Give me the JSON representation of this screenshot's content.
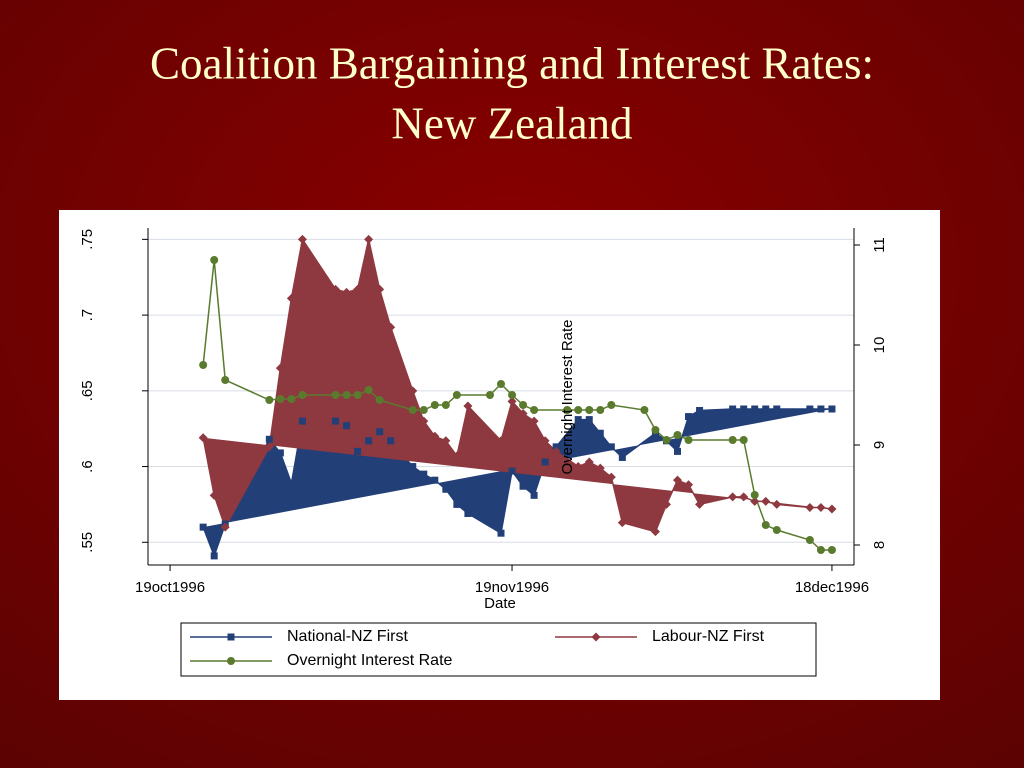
{
  "chart_data": {
    "type": "area-line",
    "title": [
      "Coalition Bargaining and Interest Rates:",
      "New Zealand"
    ],
    "x_label": "Date",
    "y2_label": "Overnight Interest Rate",
    "xlim": [
      "1996-10-17",
      "1996-12-20"
    ],
    "xticks": [
      {
        "value": "1996-10-19",
        "label": "19oct1996"
      },
      {
        "value": "1996-11-19",
        "label": "19nov1996"
      },
      {
        "value": "1996-12-18",
        "label": "18dec1996"
      }
    ],
    "ylim": [
      0.535,
      0.7575
    ],
    "yticks": [
      {
        "value": 0.55,
        "label": ".55"
      },
      {
        "value": 0.6,
        "label": ".6"
      },
      {
        "value": 0.65,
        "label": ".65"
      },
      {
        "value": 0.7,
        "label": ".7"
      },
      {
        "value": 0.75,
        "label": ".75"
      }
    ],
    "y2lim": [
      7.8,
      11.17
    ],
    "y2ticks": [
      8,
      9,
      10,
      11
    ],
    "grid": true,
    "series": [
      {
        "name": "National-NZ First",
        "color": "#233f78",
        "marker": "square",
        "area": true,
        "x": [
          "1996-10-22",
          "1996-10-23",
          "1996-10-24",
          "1996-10-28",
          "1996-10-29",
          "1996-10-30",
          "1996-10-31",
          "1996-11-03",
          "1996-11-04",
          "1996-11-05",
          "1996-11-06",
          "1996-11-07",
          "1996-11-08",
          "1996-11-10",
          "1996-11-11",
          "1996-11-12",
          "1996-11-13",
          "1996-11-14",
          "1996-11-15",
          "1996-11-18",
          "1996-11-19",
          "1996-11-20",
          "1996-11-21",
          "1996-11-22",
          "1996-11-23",
          "1996-11-25",
          "1996-11-26",
          "1996-11-27",
          "1996-11-28",
          "1996-11-29",
          "1996-12-02",
          "1996-12-03",
          "1996-12-04",
          "1996-12-05",
          "1996-12-06",
          "1996-12-09",
          "1996-12-10",
          "1996-12-11",
          "1996-12-12",
          "1996-12-13",
          "1996-12-16",
          "1996-12-17",
          "1996-12-18"
        ],
        "values": [
          0.56,
          0.541,
          0.562,
          0.618,
          0.609,
          0.589,
          0.63,
          0.63,
          0.627,
          0.61,
          0.617,
          0.623,
          0.617,
          0.6,
          0.595,
          0.591,
          0.585,
          0.575,
          0.569,
          0.556,
          0.597,
          0.587,
          0.581,
          0.603,
          0.613,
          0.631,
          0.631,
          0.622,
          0.613,
          0.606,
          0.622,
          0.617,
          0.61,
          0.633,
          0.637,
          0.638,
          0.638,
          0.638,
          0.638,
          0.638,
          0.638,
          0.638,
          0.638
        ]
      },
      {
        "name": "Labour-NZ First",
        "color": "#8e3840",
        "marker": "diamond",
        "area": true,
        "x": [
          "1996-10-22",
          "1996-10-23",
          "1996-10-24",
          "1996-10-28",
          "1996-10-29",
          "1996-10-30",
          "1996-10-31",
          "1996-11-03",
          "1996-11-04",
          "1996-11-05",
          "1996-11-06",
          "1996-11-07",
          "1996-11-08",
          "1996-11-10",
          "1996-11-11",
          "1996-11-12",
          "1996-11-13",
          "1996-11-14",
          "1996-11-15",
          "1996-11-18",
          "1996-11-19",
          "1996-11-20",
          "1996-11-21",
          "1996-11-22",
          "1996-11-23",
          "1996-11-25",
          "1996-11-26",
          "1996-11-27",
          "1996-11-28",
          "1996-11-29",
          "1996-12-02",
          "1996-12-03",
          "1996-12-04",
          "1996-12-05",
          "1996-12-06",
          "1996-12-09",
          "1996-12-10",
          "1996-12-11",
          "1996-12-12",
          "1996-12-13",
          "1996-12-16",
          "1996-12-17",
          "1996-12-18"
        ],
        "values": [
          0.619,
          0.581,
          0.56,
          0.613,
          0.665,
          0.711,
          0.75,
          0.717,
          0.715,
          0.717,
          0.75,
          0.717,
          0.692,
          0.65,
          0.63,
          0.62,
          0.617,
          0.607,
          0.64,
          0.617,
          0.643,
          0.635,
          0.63,
          0.617,
          0.61,
          0.6,
          0.603,
          0.599,
          0.593,
          0.563,
          0.557,
          0.575,
          0.591,
          0.588,
          0.575,
          0.58,
          0.58,
          0.577,
          0.577,
          0.575,
          0.573,
          0.573,
          0.572
        ]
      },
      {
        "name": "Overnight Interest Rate",
        "color": "#5a7a2e",
        "marker": "circle",
        "axis": "y2",
        "x": [
          "1996-10-22",
          "1996-10-23",
          "1996-10-24",
          "1996-10-28",
          "1996-10-29",
          "1996-10-30",
          "1996-10-31",
          "1996-11-03",
          "1996-11-04",
          "1996-11-05",
          "1996-11-06",
          "1996-11-07",
          "1996-11-10",
          "1996-11-11",
          "1996-11-12",
          "1996-11-13",
          "1996-11-14",
          "1996-11-17",
          "1996-11-18",
          "1996-11-19",
          "1996-11-20",
          "1996-11-21",
          "1996-11-24",
          "1996-11-25",
          "1996-11-26",
          "1996-11-27",
          "1996-11-28",
          "1996-12-01",
          "1996-12-02",
          "1996-12-03",
          "1996-12-04",
          "1996-12-05",
          "1996-12-09",
          "1996-12-10",
          "1996-12-11",
          "1996-12-12",
          "1996-12-13",
          "1996-12-16",
          "1996-12-17",
          "1996-12-18"
        ],
        "values": [
          9.8,
          10.85,
          9.65,
          9.45,
          9.46,
          9.46,
          9.5,
          9.5,
          9.5,
          9.5,
          9.55,
          9.45,
          9.35,
          9.35,
          9.4,
          9.4,
          9.5,
          9.5,
          9.61,
          9.5,
          9.4,
          9.35,
          9.35,
          9.35,
          9.35,
          9.35,
          9.4,
          9.35,
          9.15,
          9.05,
          9.1,
          9.05,
          9.05,
          9.05,
          8.5,
          8.2,
          8.15,
          8.05,
          7.95,
          7.95
        ]
      }
    ]
  }
}
